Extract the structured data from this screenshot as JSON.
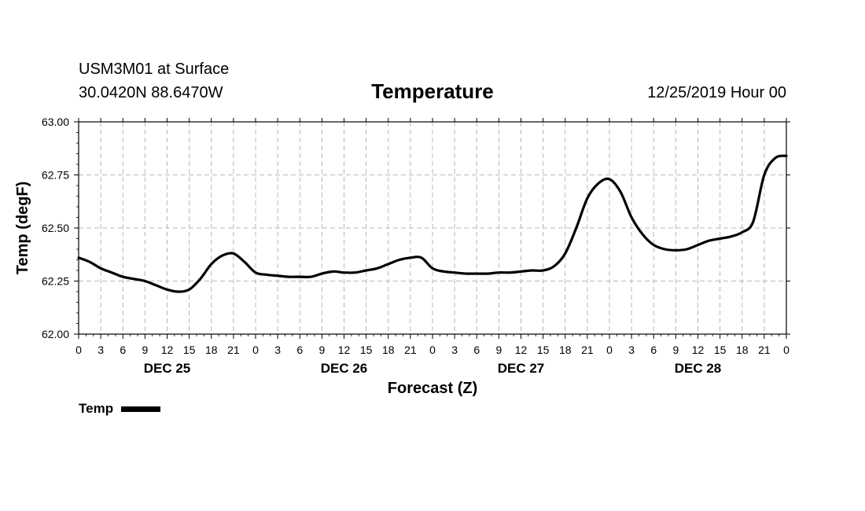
{
  "header": {
    "station": "USM3M01 at Surface",
    "coords": "30.0420N 88.6470W",
    "title": "Temperature",
    "date": "12/25/2019 Hour 00"
  },
  "legend": {
    "label": "Temp"
  },
  "chart_data": {
    "type": "line",
    "title": "Temperature",
    "xlabel": "Forecast (Z)",
    "ylabel": "Temp (degF)",
    "ylim": [
      62.0,
      63.0
    ],
    "yticks": [
      "62.00",
      "62.25",
      "62.50",
      "62.75",
      "63.00"
    ],
    "xlim": [
      0,
      96
    ],
    "xtick_labels": [
      "0",
      "3",
      "6",
      "9",
      "12",
      "15",
      "18",
      "21",
      "0",
      "3",
      "6",
      "9",
      "12",
      "15",
      "18",
      "21",
      "0",
      "3",
      "6",
      "9",
      "12",
      "15",
      "18",
      "21",
      "0",
      "3",
      "6",
      "9",
      "12",
      "15",
      "18",
      "21",
      "0"
    ],
    "day_labels": [
      {
        "label": "DEC 25",
        "hour": 12
      },
      {
        "label": "DEC 26",
        "hour": 36
      },
      {
        "label": "DEC 27",
        "hour": 60
      },
      {
        "label": "DEC 28",
        "hour": 84
      }
    ],
    "grid": true,
    "legend": "bottom-left",
    "series": [
      {
        "name": "Temp",
        "x": [
          0,
          1.5,
          3,
          4.5,
          6,
          7.5,
          9,
          10.5,
          12,
          13.5,
          15,
          16.5,
          18,
          19.5,
          21,
          22.5,
          24,
          25.5,
          27,
          28.5,
          30,
          31.5,
          33,
          34.5,
          36,
          37.5,
          39,
          40.5,
          42,
          43.5,
          45,
          46.5,
          48,
          49.5,
          51,
          52.5,
          54,
          55.5,
          57,
          58.5,
          60,
          61.5,
          63,
          64.5,
          66,
          67.5,
          69,
          70.5,
          72,
          73.5,
          75,
          76.5,
          78,
          79.5,
          81,
          82.5,
          84,
          85.5,
          87,
          88.5,
          90,
          91.5,
          93,
          94.5,
          96
        ],
        "values": [
          62.36,
          62.34,
          62.31,
          62.29,
          62.27,
          62.26,
          62.25,
          62.23,
          62.21,
          62.2,
          62.21,
          62.26,
          62.33,
          62.37,
          62.38,
          62.34,
          62.29,
          62.28,
          62.275,
          62.27,
          62.27,
          62.27,
          62.285,
          62.295,
          62.29,
          62.29,
          62.3,
          62.31,
          62.33,
          62.35,
          62.36,
          62.36,
          62.31,
          62.295,
          62.29,
          62.285,
          62.285,
          62.285,
          62.29,
          62.29,
          62.295,
          62.3,
          62.3,
          62.32,
          62.38,
          62.5,
          62.64,
          62.71,
          62.73,
          62.67,
          62.55,
          62.47,
          62.42,
          62.4,
          62.395,
          62.4,
          62.42,
          62.44,
          62.45,
          62.46,
          62.48,
          62.53,
          62.75,
          62.83,
          62.84
        ]
      }
    ]
  }
}
